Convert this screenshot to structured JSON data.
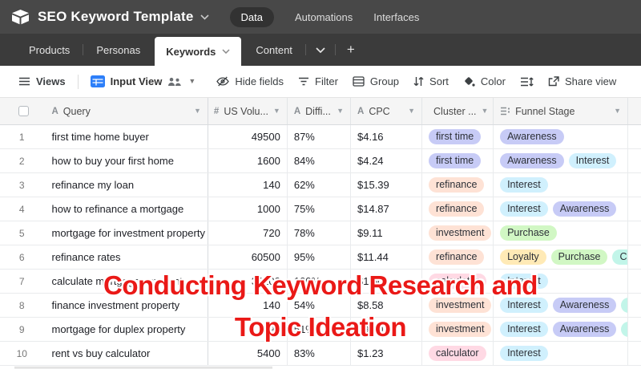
{
  "topbar": {
    "title": "SEO Keyword Template",
    "nav": [
      {
        "label": "Data",
        "active": true
      },
      {
        "label": "Automations",
        "active": false
      },
      {
        "label": "Interfaces",
        "active": false
      }
    ]
  },
  "tabs": [
    {
      "label": "Products",
      "active": false
    },
    {
      "label": "Personas",
      "active": false
    },
    {
      "label": "Keywords",
      "active": true
    },
    {
      "label": "Content",
      "active": false
    }
  ],
  "toolbar": {
    "views": "Views",
    "view_name": "Input View",
    "hide_fields": "Hide fields",
    "filter": "Filter",
    "group": "Group",
    "sort": "Sort",
    "color": "Color",
    "share_view": "Share view"
  },
  "colors": {
    "lavender": "#c7cbf6",
    "peach": "#fee2d5",
    "pink": "#ffd9e4",
    "cyan": "#d0f0fd",
    "green": "#d1f7c4",
    "amber": "#ffeab6",
    "mint": "#c2f5e9"
  },
  "table": {
    "columns": [
      {
        "label": "Query",
        "type": "text"
      },
      {
        "label": "US Volu...",
        "type": "number"
      },
      {
        "label": "Diffi...",
        "type": "text"
      },
      {
        "label": "CPC",
        "type": "text"
      },
      {
        "label": "Cluster ...",
        "type": "multi-select"
      },
      {
        "label": "Funnel Stage",
        "type": "multi-select"
      }
    ],
    "rows": [
      {
        "num": "1",
        "query": "first time home buyer",
        "volume": "49500",
        "difficulty": "87%",
        "cpc": "$4.16",
        "cluster": [
          {
            "label": "first time",
            "color": "lavender"
          }
        ],
        "funnel": [
          {
            "label": "Awareness",
            "color": "lavender"
          }
        ]
      },
      {
        "num": "2",
        "query": "how to buy your first home",
        "volume": "1600",
        "difficulty": "84%",
        "cpc": "$4.24",
        "cluster": [
          {
            "label": "first time",
            "color": "lavender"
          }
        ],
        "funnel": [
          {
            "label": "Awareness",
            "color": "lavender"
          },
          {
            "label": "Interest",
            "color": "cyan"
          }
        ]
      },
      {
        "num": "3",
        "query": "refinance my loan",
        "volume": "140",
        "difficulty": "62%",
        "cpc": "$15.39",
        "cluster": [
          {
            "label": "refinance",
            "color": "peach"
          }
        ],
        "funnel": [
          {
            "label": "Interest",
            "color": "cyan"
          }
        ]
      },
      {
        "num": "4",
        "query": "how to refinance a mortgage",
        "volume": "1000",
        "difficulty": "75%",
        "cpc": "$14.87",
        "cluster": [
          {
            "label": "refinance",
            "color": "peach"
          }
        ],
        "funnel": [
          {
            "label": "Interest",
            "color": "cyan"
          },
          {
            "label": "Awareness",
            "color": "lavender"
          }
        ]
      },
      {
        "num": "5",
        "query": "mortgage for investment property",
        "volume": "720",
        "difficulty": "78%",
        "cpc": "$9.11",
        "cluster": [
          {
            "label": "investment",
            "color": "peach"
          }
        ],
        "funnel": [
          {
            "label": "Purchase",
            "color": "green"
          }
        ]
      },
      {
        "num": "6",
        "query": "refinance rates",
        "volume": "60500",
        "difficulty": "95%",
        "cpc": "$11.44",
        "cluster": [
          {
            "label": "refinance",
            "color": "peach"
          }
        ],
        "funnel": [
          {
            "label": "Loyalty",
            "color": "amber"
          },
          {
            "label": "Purchase",
            "color": "green"
          },
          {
            "label": "Consideration",
            "color": "mint"
          }
        ]
      },
      {
        "num": "7",
        "query": "calculate mortgage payment",
        "volume": "33100",
        "difficulty": "100%",
        "cpc": "$1.50",
        "cluster": [
          {
            "label": "calculator",
            "color": "pink"
          }
        ],
        "funnel": [
          {
            "label": "Interest",
            "color": "cyan"
          }
        ]
      },
      {
        "num": "8",
        "query": "finance investment property",
        "volume": "140",
        "difficulty": "54%",
        "cpc": "$8.58",
        "cluster": [
          {
            "label": "investment",
            "color": "peach"
          }
        ],
        "funnel": [
          {
            "label": "Interest",
            "color": "cyan"
          },
          {
            "label": "Awareness",
            "color": "lavender"
          },
          {
            "label": "Consideration",
            "color": "mint"
          }
        ]
      },
      {
        "num": "9",
        "query": "mortgage for duplex property",
        "volume": "590",
        "difficulty": "51%",
        "cpc": "$9.40",
        "cluster": [
          {
            "label": "investment",
            "color": "peach"
          }
        ],
        "funnel": [
          {
            "label": "Interest",
            "color": "cyan"
          },
          {
            "label": "Awareness",
            "color": "lavender"
          },
          {
            "label": "Consideration",
            "color": "mint"
          }
        ]
      },
      {
        "num": "10",
        "query": "rent vs buy calculator",
        "volume": "5400",
        "difficulty": "83%",
        "cpc": "$1.23",
        "cluster": [
          {
            "label": "calculator",
            "color": "pink"
          }
        ],
        "funnel": [
          {
            "label": "Interest",
            "color": "cyan"
          }
        ]
      }
    ]
  },
  "overlay": {
    "line1": "Conducting Keyword Research and",
    "line2": "Topic Ideation"
  }
}
